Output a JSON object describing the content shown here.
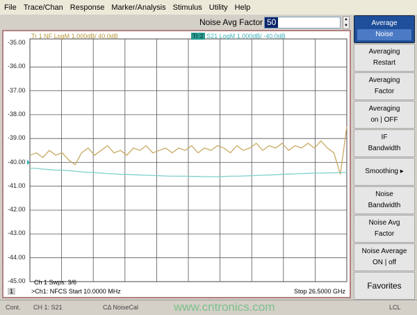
{
  "menu": [
    "File",
    "Trace/Chan",
    "Response",
    "Marker/Analysis",
    "Stimulus",
    "Utility",
    "Help"
  ],
  "factor": {
    "label": "Noise Avg Factor",
    "value": "50"
  },
  "traces": {
    "tr1": "Tr 1  NF LogM 1.000dB/  40.0dB",
    "tr2_tag": "Tr 2",
    "tr2": " S21 LogM 1.000dB/  -40.0dB",
    "tr1_color": "#c8a860",
    "tr2_color": "#7fd0cc"
  },
  "chart_data": {
    "type": "line",
    "ylim": [
      -45,
      -35
    ],
    "yticks": [
      "-35.00",
      "-36.00",
      "-37.00",
      "-38.00",
      "-39.00",
      "-40.00",
      "-41.00",
      "-42.00",
      "-43.00",
      "-44.00",
      "-45.00"
    ],
    "x_divisions": 10,
    "grid": true,
    "series": [
      {
        "name": "Tr 1 NF",
        "values": [
          -39.7,
          -39.6,
          -39.8,
          -39.5,
          -39.7,
          -39.6,
          -39.9,
          -40.1,
          -39.6,
          -39.4,
          -39.7,
          -39.5,
          -39.3,
          -39.6,
          -39.5,
          -39.7,
          -39.4,
          -39.5,
          -39.3,
          -39.6,
          -39.5,
          -39.4,
          -39.6,
          -39.4,
          -39.5,
          -39.3,
          -39.6,
          -39.4,
          -39.5,
          -39.3,
          -39.4,
          -39.6,
          -39.3,
          -39.5,
          -39.4,
          -39.2,
          -39.5,
          -39.3,
          -39.4,
          -39.2,
          -39.5,
          -39.3,
          -39.4,
          -39.2,
          -39.4,
          -39.1,
          -39.4,
          -39.6,
          -40.5,
          -38.5
        ]
      },
      {
        "name": "Tr 2 S21",
        "values": [
          -40.25,
          -40.25,
          -40.28,
          -40.3,
          -40.32,
          -40.33,
          -40.35,
          -40.37,
          -40.4,
          -40.42,
          -40.43,
          -40.45,
          -40.47,
          -40.48,
          -40.5,
          -40.5,
          -40.52,
          -40.53,
          -40.54,
          -40.55,
          -40.56,
          -40.57,
          -40.58,
          -40.58,
          -40.58,
          -40.59,
          -40.59,
          -40.6,
          -40.6,
          -40.6,
          -40.59,
          -40.58,
          -40.58,
          -40.57,
          -40.56,
          -40.55,
          -40.54,
          -40.53,
          -40.52,
          -40.5,
          -40.49,
          -40.48,
          -40.47,
          -40.46,
          -40.45,
          -40.45,
          -40.44,
          -40.44,
          -40.43,
          -40.42
        ]
      }
    ]
  },
  "sweeps": "Ch 1  Swps: 3/6",
  "footer": {
    "ch": "1",
    "start": ">Ch1: NFCS Start  10.0000 MHz",
    "stop": "Stop  26.5000 GHz"
  },
  "status": {
    "mode": "Cont.",
    "ch": "CH 1:  S21",
    "cal": "CΔ NoiseCal",
    "extra": "LCL"
  },
  "side": [
    {
      "label": "Average",
      "sub": "Noise",
      "active": true
    },
    {
      "label": "Averaging",
      "sub": "Restart"
    },
    {
      "label": "Averaging",
      "sub": "Factor"
    },
    {
      "label": "Averaging",
      "sub": "on | OFF"
    },
    {
      "label": "IF",
      "sub": "Bandwidth"
    },
    {
      "label": "Smoothing ▸",
      "sub": ""
    },
    {
      "label": "Noise",
      "sub": "Bandwidth"
    },
    {
      "label": "Noise Avg",
      "sub": "Factor"
    },
    {
      "label": "Noise Average",
      "sub": "ON | off"
    },
    {
      "label": "Favorites",
      "sub": ""
    }
  ],
  "watermark": "www.cntronics.com"
}
